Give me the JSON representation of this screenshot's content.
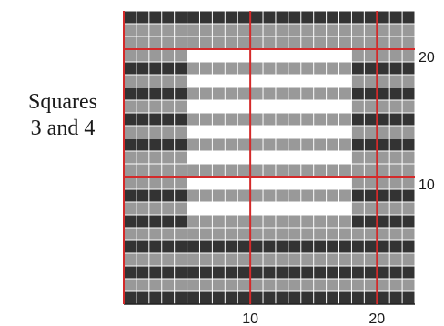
{
  "caption": {
    "line1": "Squares",
    "line2": "3 and 4"
  },
  "grid": {
    "columns": 23,
    "rows": 23,
    "colors": {
      "dark": "#333333",
      "gray": "#999999",
      "white": "#ffffff",
      "cell_border": "#ffffff",
      "guide_line": "#d42a2a",
      "frame": "#222222"
    },
    "pattern_rows_bottom_up": [
      [
        "D",
        23
      ],
      [
        "G",
        23
      ],
      [
        "D",
        23
      ],
      [
        "G",
        23
      ],
      [
        "D",
        23
      ],
      [
        "G",
        23
      ],
      [
        "D",
        5,
        "G",
        13,
        "D",
        5
      ],
      [
        "G",
        5,
        "W",
        13,
        "G",
        5
      ],
      [
        "D",
        5,
        "G",
        13,
        "D",
        5
      ],
      [
        "G",
        5,
        "W",
        13,
        "G",
        5
      ],
      [
        "G",
        23
      ],
      [
        "G",
        5,
        "W",
        13,
        "G",
        5
      ],
      [
        "D",
        5,
        "G",
        13,
        "D",
        5
      ],
      [
        "G",
        5,
        "W",
        13,
        "G",
        5
      ],
      [
        "D",
        5,
        "G",
        13,
        "D",
        5
      ],
      [
        "G",
        5,
        "W",
        13,
        "G",
        5
      ],
      [
        "D",
        5,
        "G",
        13,
        "D",
        5
      ],
      [
        "G",
        5,
        "W",
        13,
        "G",
        5
      ],
      [
        "D",
        5,
        "G",
        13,
        "D",
        5
      ],
      [
        "G",
        5,
        "W",
        13,
        "G",
        5
      ],
      [
        "G",
        23
      ],
      [
        "G",
        23
      ],
      [
        "D",
        23
      ]
    ],
    "vertical_guides": [
      0,
      10,
      20
    ],
    "horizontal_guides": [
      10,
      20
    ],
    "x_labels": [
      {
        "value": 10,
        "text": "10"
      },
      {
        "value": 20,
        "text": "20"
      }
    ],
    "y_labels": [
      {
        "value": 10,
        "text": "10"
      },
      {
        "value": 20,
        "text": "20"
      }
    ]
  }
}
